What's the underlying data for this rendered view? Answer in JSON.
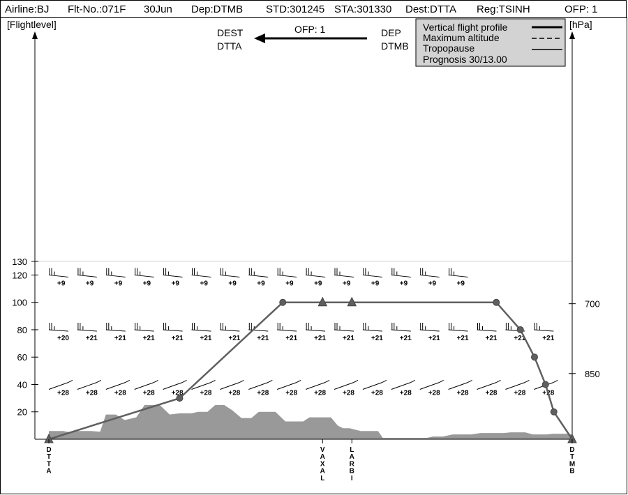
{
  "header": {
    "airline": "Airline:BJ",
    "flight_no": "Flt-No.:071F",
    "date": "30Jun",
    "departure": "Dep:DTMB",
    "std": "STD:301245",
    "sta": "STA:301330",
    "destination": "Dest:DTTA",
    "registration": "Reg:TSINH",
    "ofp": "OFP: 1"
  },
  "route_banner": {
    "dest_label": "DEST",
    "dest_code": "DTTA",
    "ofp": "OFP: 1",
    "dep_label": "DEP",
    "dep_code": "DTMB"
  },
  "legend": {
    "items": [
      {
        "label": "Vertical flight profile",
        "style": "solid-thick"
      },
      {
        "label": "Maximum altitude",
        "style": "dashed"
      },
      {
        "label": "Tropopause",
        "style": "solid-thin"
      }
    ],
    "prognosis": "Prognosis  30/13.00"
  },
  "chart_data": {
    "type": "line",
    "title": "",
    "ylabel": "[Flightlevel]",
    "y2label": "[hPa]",
    "ylim": [
      0,
      130
    ],
    "yticks": [
      "20",
      "40",
      "60",
      "80",
      "100",
      "120",
      "130"
    ],
    "y2ticks": [
      {
        "label": "700",
        "flightlevel": 99
      },
      {
        "label": "850",
        "flightlevel": 48
      }
    ],
    "xlim": [
      0,
      100
    ],
    "waypoints": [
      {
        "label": "DTTA",
        "x": 0
      },
      {
        "label": "VAXAL",
        "x": 52.3
      },
      {
        "label": "LARBI",
        "x": 57.9
      },
      {
        "label": "DTMB",
        "x": 100
      }
    ],
    "series": [
      {
        "name": "Vertical flight profile",
        "color": "#5f5f5f",
        "points": [
          [
            0,
            0
          ],
          [
            25,
            30
          ],
          [
            44.7,
            100
          ],
          [
            52.3,
            100
          ],
          [
            57.9,
            100
          ],
          [
            85.5,
            100
          ],
          [
            90.1,
            80
          ],
          [
            92.8,
            60
          ],
          [
            94.9,
            40
          ],
          [
            96.5,
            20
          ],
          [
            100,
            0
          ]
        ],
        "markers": [
          "triangle",
          "circle",
          "circle",
          "triangle",
          "triangle",
          "circle",
          "circle",
          "circle",
          "circle",
          "circle",
          "triangle"
        ]
      }
    ],
    "terrain": {
      "color": "#999999",
      "points": [
        [
          0,
          6
        ],
        [
          2.7,
          6
        ],
        [
          4.2,
          5
        ],
        [
          5.6,
          6
        ],
        [
          8.1,
          6
        ],
        [
          9.8,
          5.5
        ],
        [
          10.9,
          18
        ],
        [
          12.8,
          18
        ],
        [
          14.5,
          14
        ],
        [
          16.7,
          16
        ],
        [
          18.3,
          25
        ],
        [
          21.2,
          25
        ],
        [
          23.1,
          18
        ],
        [
          25.1,
          19
        ],
        [
          27.3,
          19
        ],
        [
          28.5,
          20
        ],
        [
          30.3,
          20
        ],
        [
          31.8,
          25
        ],
        [
          33.5,
          25
        ],
        [
          35.1,
          21
        ],
        [
          36.8,
          15.5
        ],
        [
          38.7,
          15.5
        ],
        [
          40.1,
          20
        ],
        [
          43.3,
          20
        ],
        [
          45.2,
          13
        ],
        [
          48.6,
          13
        ],
        [
          49.8,
          16
        ],
        [
          53.2,
          16
        ],
        [
          53.9,
          16
        ],
        [
          55.2,
          10
        ],
        [
          56.2,
          8
        ],
        [
          57.5,
          8
        ],
        [
          59.6,
          6
        ],
        [
          62.9,
          6
        ],
        [
          63.8,
          1
        ],
        [
          72.3,
          1
        ],
        [
          73.4,
          2
        ],
        [
          75.3,
          2
        ],
        [
          77.2,
          3.5
        ],
        [
          80.7,
          3.5
        ],
        [
          82.5,
          4.5
        ],
        [
          86.9,
          4.5
        ],
        [
          88.3,
          5
        ],
        [
          91.0,
          5
        ],
        [
          92.5,
          3.5
        ],
        [
          95.1,
          3.5
        ],
        [
          96.4,
          4
        ],
        [
          99.1,
          4
        ],
        [
          100,
          3.5
        ],
        [
          100,
          0
        ]
      ]
    },
    "wind_levels": [
      {
        "flightlevel": 120,
        "temps": [
          "+9",
          "+9",
          "+9",
          "+9",
          "+9",
          "+9",
          "+9",
          "+9",
          "+9",
          "+9",
          "+9",
          "+9",
          "+9",
          "+9",
          "+9"
        ]
      },
      {
        "flightlevel": 80,
        "temps": [
          "+20",
          "+21",
          "+21",
          "+21",
          "+21",
          "+21",
          "+21",
          "+21",
          "+21",
          "+21",
          "+21",
          "+21",
          "+21",
          "+21",
          "+21",
          "+21",
          "+21",
          "+21"
        ]
      },
      {
        "flightlevel": 40,
        "temps": [
          "+28",
          "+28",
          "+28",
          "+28",
          "+28",
          "+28",
          "+28",
          "+28",
          "+28",
          "+28",
          "+28",
          "+28",
          "+28",
          "+28",
          "+28",
          "+28",
          "+28",
          "+28"
        ]
      }
    ],
    "grid": false,
    "legend_position": "top-right"
  }
}
